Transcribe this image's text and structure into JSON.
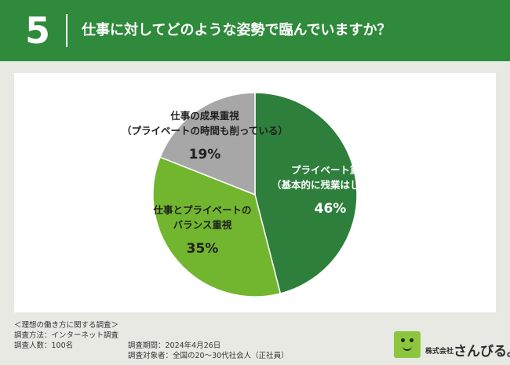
{
  "header": {
    "number": "5",
    "title": "仕事に対してどのような姿勢で臨んでいますか？"
  },
  "chart_data": {
    "type": "pie",
    "start_angle_deg": 0,
    "direction": "clockwise",
    "slices": [
      {
        "label_lines": [
          "プライベート重視",
          "（基本的に残業はしない）"
        ],
        "value": 46,
        "value_label": "46%",
        "color": "#2d7f3b",
        "text_color": "#ffffff"
      },
      {
        "label_lines": [
          "仕事とプライベートの",
          "バランス重視"
        ],
        "value": 35,
        "value_label": "35%",
        "color": "#72b62f",
        "text_color": "#1f1f1f"
      },
      {
        "label_lines": [
          "仕事の成果重視",
          "（プライベートの時間も削っている）"
        ],
        "value": 19,
        "value_label": "19%",
        "color": "#a7a7a7",
        "text_color": "#1f1f1f"
      }
    ]
  },
  "footer": {
    "survey_name": "＜理想の働き方に関する調査＞",
    "method": "調査方法：インターネット調査",
    "respondents": "調査人数：100名",
    "period": "調査期間：2024年4月26日",
    "target": "調査対象者：全国の20～30代社会人（正社員）"
  },
  "brand": {
    "company_sub": "株式会社",
    "company_name": "さんびる。"
  },
  "colors": {
    "header_bg": "#2f8a3c",
    "page_bg": "#e7e9e2",
    "logo_green": "#8cc63f"
  }
}
